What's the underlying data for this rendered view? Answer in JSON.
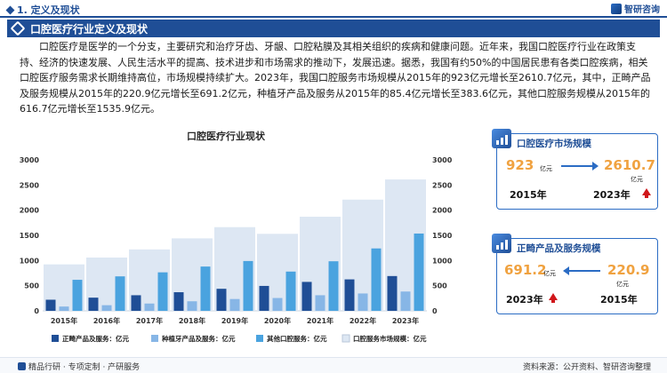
{
  "header": {
    "section": "1. 定义及现状",
    "brand": "智研咨询"
  },
  "banner": {
    "title": "口腔医疗行业定义及现状"
  },
  "intro": {
    "paragraph": "口腔医疗是医学的一个分支，主要研究和治疗牙齿、牙龈、口腔粘膜及其相关组织的疾病和健康问题。近年来，我国口腔医疗行业在政策支持、经济的快速发展、人民生活水平的提高、技术进步和市场需求的推动下，发展迅速。据悉，我国有约50%的中国居民患有各类口腔疾病，相关口腔医疗服务需求长期维持高位，市场规模持续扩大。2023年，我国口腔服务市场规模从2015年的923亿元增长至2610.7亿元，其中，正畸产品及服务规模从2015年的220.9亿元增长至691.2亿元，种植牙产品及服务从2015年的85.4亿元增长至383.6亿元，其他口腔服务规模从2015年的616.7亿元增长至1535.9亿元。"
  },
  "chart_data": {
    "type": "bar",
    "title": "口腔医疗行业现状",
    "categories": [
      "2015年",
      "2016年",
      "2017年",
      "2018年",
      "2019年",
      "2020年",
      "2021年",
      "2022年",
      "2023年"
    ],
    "series": [
      {
        "name": "正畸产品及服务：亿元",
        "color": "#1f4e96",
        "values": [
          220.9,
          262,
          310,
          370,
          438,
          495,
          575,
          625,
          691.2
        ]
      },
      {
        "name": "种植牙产品及服务：亿元",
        "color": "#87b6e6",
        "values": [
          85.4,
          112,
          145,
          190,
          235,
          255,
          310,
          345,
          383.6
        ]
      },
      {
        "name": "其他口腔服务：亿元",
        "color": "#4aa3df",
        "values": [
          616.7,
          685,
          765,
          880,
          990,
          780,
          985,
          1240,
          1535.9
        ]
      },
      {
        "name": "口腔服务市场规模：亿元",
        "color": "#dde7f3",
        "values": [
          923,
          1059,
          1220,
          1440,
          1663,
          1530,
          1870,
          2210,
          2610.7
        ]
      }
    ],
    "ylim": [
      0,
      3000
    ],
    "yticks": [
      0,
      500,
      1000,
      1500,
      2000,
      2500,
      3000
    ],
    "dual_axis": true,
    "legend": "bottom"
  },
  "cards": {
    "market": {
      "title": "口腔医疗市场规模",
      "from_value": "923",
      "from_unit": "亿元",
      "from_year": "2015年",
      "to_value": "2610.7",
      "to_unit": "亿元",
      "to_year": "2023年"
    },
    "ortho": {
      "title": "正畸产品及服务规模",
      "left_value": "691.2",
      "left_unit": "亿元",
      "left_year": "2023年",
      "right_value": "220.9",
      "right_unit": "亿元",
      "right_year": "2015年"
    }
  },
  "footer": {
    "left": "精品行研 · 专项定制 · 产研服务",
    "right": "资料来源：公开资料、智研咨询整理"
  },
  "colors": {
    "primary": "#1f4e96",
    "accent": "#f0a240",
    "up_arrow": "#d0171b"
  }
}
